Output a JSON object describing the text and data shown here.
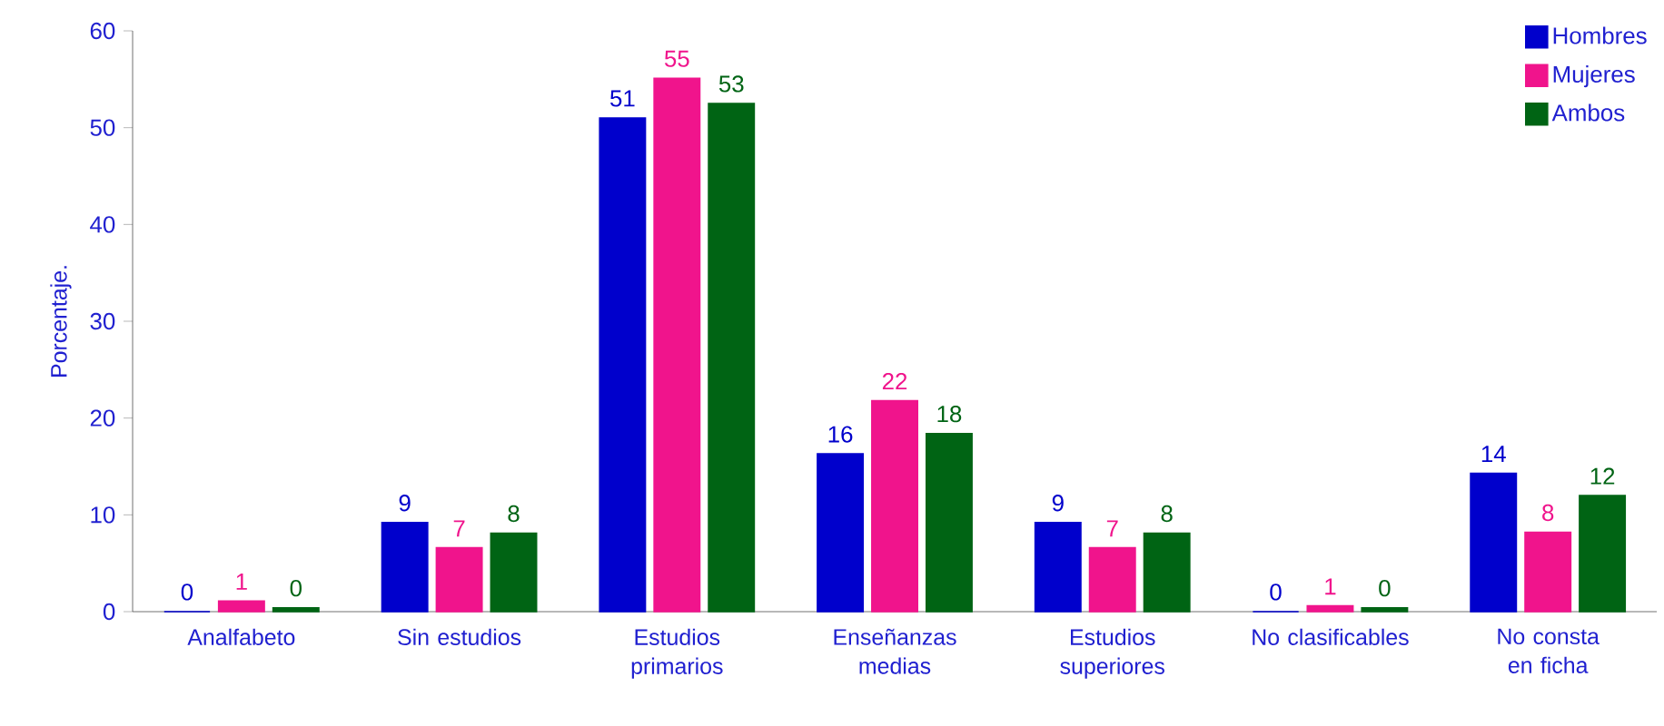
{
  "chart_data": {
    "type": "bar",
    "ylabel": "Porcentaje.",
    "categories": [
      "Analfabeto",
      "Sin estudios",
      "Estudios primarios",
      "Enseñanzas medias",
      "Estudios superiores",
      "No clasificables",
      "No consta en ficha"
    ],
    "series": [
      {
        "name": "Hombres",
        "color": "#0000cc",
        "values": [
          0,
          9.2,
          51.0,
          16.3,
          9.2,
          0,
          14.3
        ],
        "value_labels": [
          "0",
          "9",
          "51",
          "16",
          "9",
          "0",
          "14"
        ]
      },
      {
        "name": "Mujeres",
        "color": "#f0148c",
        "values": [
          1.1,
          6.6,
          55.1,
          21.8,
          6.6,
          0.6,
          8.2
        ],
        "value_labels": [
          "1",
          "7",
          "55",
          "22",
          "7",
          "1",
          "8"
        ]
      },
      {
        "name": "Ambos",
        "color": "#006414",
        "values": [
          0.4,
          8.1,
          52.5,
          18.4,
          8.1,
          0.4,
          12.0
        ],
        "value_labels": [
          "0",
          "8",
          "53",
          "18",
          "8",
          "0",
          "12"
        ]
      }
    ],
    "ylim": [
      0,
      60
    ],
    "yticks": [
      0,
      10,
      20,
      30,
      40,
      50,
      60
    ],
    "grid": false,
    "legend": "top right"
  }
}
